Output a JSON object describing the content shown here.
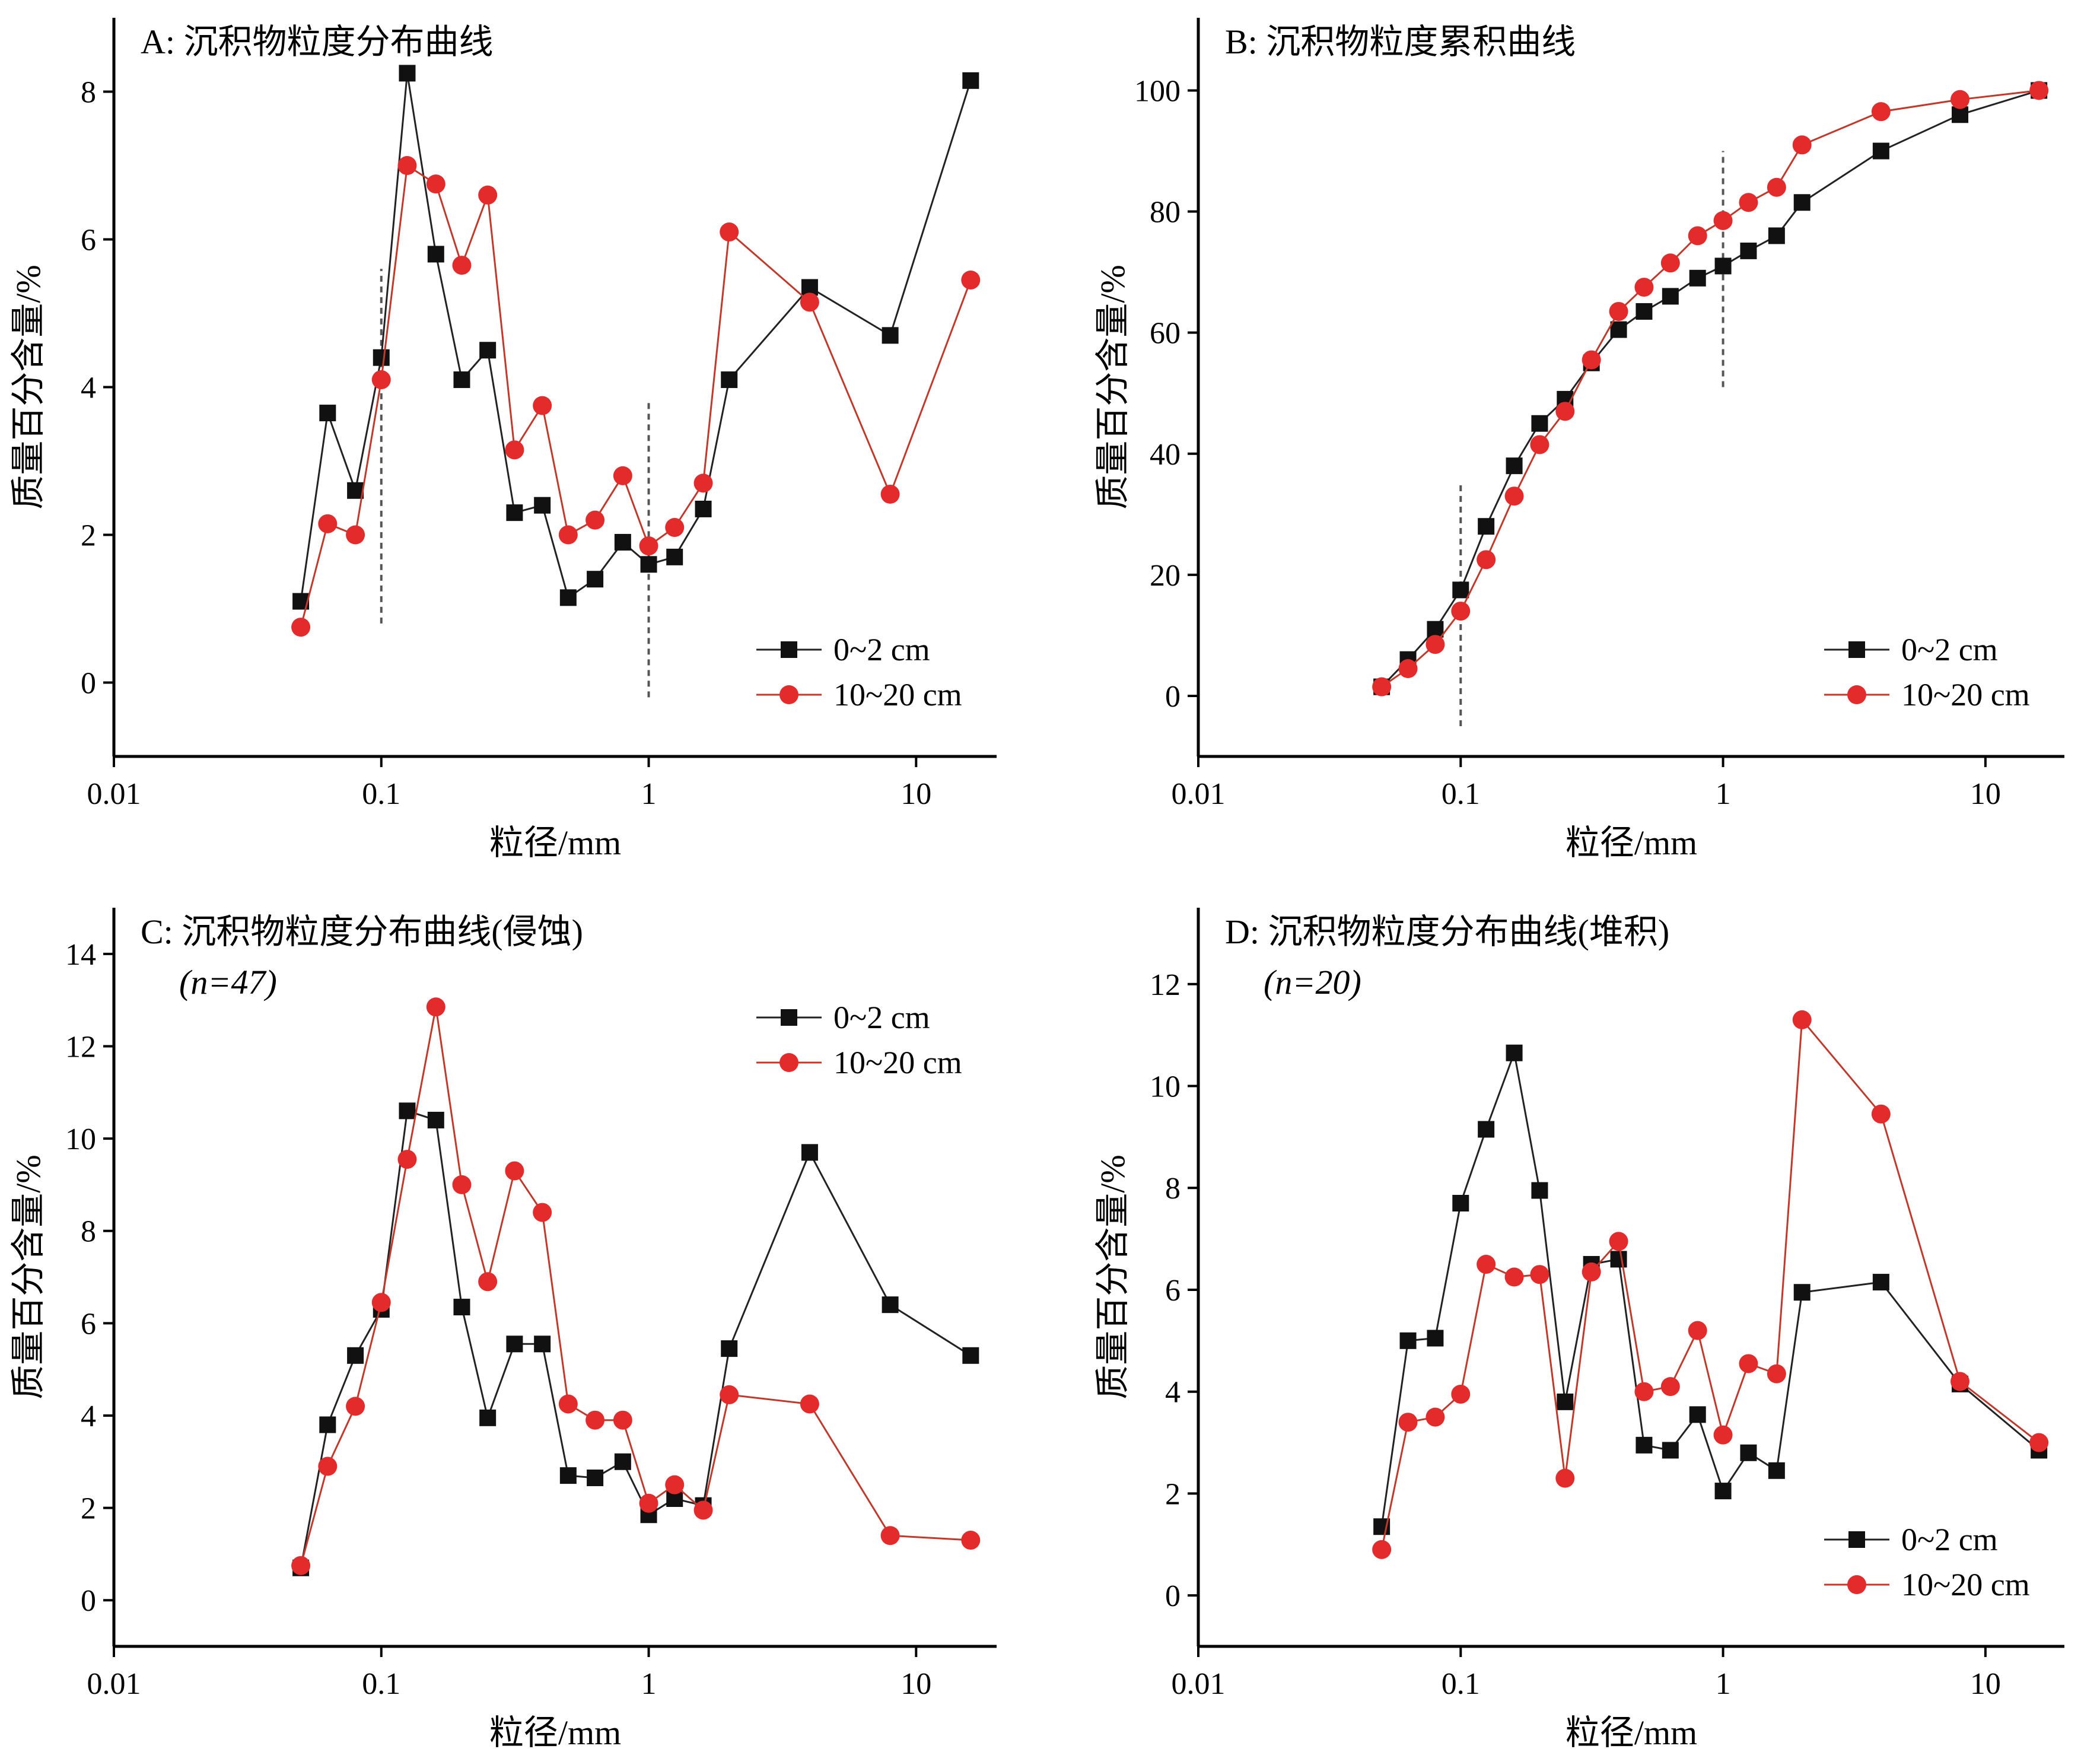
{
  "figure": {
    "xlabel": "粒径/mm",
    "ylabel": "质量百分含量/%",
    "x_ticks": [
      0.01,
      0.1,
      1,
      10
    ],
    "x_tick_labels": [
      "0.01",
      "0.1",
      "1",
      "10"
    ],
    "series_colors": [
      "#111111",
      "#e32b2b"
    ],
    "legend": [
      "0~2 cm",
      "10~20 cm"
    ]
  },
  "chart_data": [
    {
      "panel": "A",
      "type": "line",
      "title": "A: 沉积物粒度分布曲线",
      "subtitle": "",
      "xlabel": "粒径/mm",
      "ylabel": "质量百分含量/%",
      "x_scale": "log",
      "xlim": [
        0.01,
        20
      ],
      "ylim": [
        -1,
        9
      ],
      "yticks": [
        0,
        2,
        4,
        6,
        8
      ],
      "legend_position": "bottom-right",
      "reference_lines": [
        {
          "x": 0.1,
          "y_from": 0.8,
          "y_to": 5.6
        },
        {
          "x": 1,
          "y_from": -0.2,
          "y_to": 3.8
        }
      ],
      "x": [
        0.05,
        0.063,
        0.08,
        0.1,
        0.125,
        0.16,
        0.2,
        0.25,
        0.315,
        0.4,
        0.5,
        0.63,
        0.8,
        1,
        1.25,
        1.6,
        2,
        4,
        8,
        16
      ],
      "series": [
        {
          "name": "0~2 cm",
          "marker": "square",
          "values": [
            1.1,
            3.65,
            2.6,
            4.4,
            8.25,
            5.8,
            4.1,
            4.5,
            2.3,
            2.4,
            1.15,
            1.4,
            1.9,
            1.6,
            1.7,
            2.35,
            4.1,
            5.35,
            4.7,
            8.15
          ]
        },
        {
          "name": "10~20 cm",
          "marker": "circle",
          "values": [
            0.75,
            2.15,
            2.0,
            4.1,
            7.0,
            6.75,
            5.65,
            6.6,
            3.15,
            3.75,
            2.0,
            2.2,
            2.8,
            1.85,
            2.1,
            2.7,
            6.1,
            5.15,
            2.55,
            5.45
          ]
        }
      ]
    },
    {
      "panel": "B",
      "type": "line",
      "title": "B: 沉积物粒度累积曲线",
      "subtitle": "",
      "xlabel": "粒径/mm",
      "ylabel": "质量百分含量/%",
      "x_scale": "log",
      "xlim": [
        0.01,
        20
      ],
      "ylim": [
        -10,
        112
      ],
      "yticks": [
        0,
        20,
        40,
        60,
        80,
        100
      ],
      "legend_position": "bottom-right",
      "reference_lines": [
        {
          "x": 0.1,
          "y_from": -5,
          "y_to": 35
        },
        {
          "x": 1,
          "y_from": 51,
          "y_to": 90
        }
      ],
      "x": [
        0.05,
        0.063,
        0.08,
        0.1,
        0.125,
        0.16,
        0.2,
        0.25,
        0.315,
        0.4,
        0.5,
        0.63,
        0.8,
        1,
        1.25,
        1.6,
        2,
        4,
        8,
        16
      ],
      "series": [
        {
          "name": "0~2 cm",
          "marker": "square",
          "values": [
            1.5,
            6,
            11,
            17.5,
            28,
            38,
            45,
            49,
            55,
            60.5,
            63.5,
            66,
            69,
            71,
            73.5,
            76,
            81.5,
            90,
            96,
            100
          ]
        },
        {
          "name": "10~20 cm",
          "marker": "circle",
          "values": [
            1.5,
            4.5,
            8.5,
            14,
            22.5,
            33,
            41.5,
            47,
            55.5,
            63.5,
            67.5,
            71.5,
            76,
            78.5,
            81.5,
            84,
            91,
            96.5,
            98.5,
            100
          ]
        }
      ]
    },
    {
      "panel": "C",
      "type": "line",
      "title": "C: 沉积物粒度分布曲线(侵蚀)",
      "subtitle": "(n=47)",
      "xlabel": "粒径/mm",
      "ylabel": "质量百分含量/%",
      "x_scale": "log",
      "xlim": [
        0.01,
        20
      ],
      "ylim": [
        -1,
        15
      ],
      "yticks": [
        0,
        2,
        4,
        6,
        8,
        10,
        12,
        14
      ],
      "legend_position": "top-right",
      "reference_lines": [],
      "x": [
        0.05,
        0.063,
        0.08,
        0.1,
        0.125,
        0.16,
        0.2,
        0.25,
        0.315,
        0.4,
        0.5,
        0.63,
        0.8,
        1,
        1.25,
        1.6,
        2,
        4,
        8,
        16
      ],
      "series": [
        {
          "name": "0~2 cm",
          "marker": "square",
          "values": [
            0.7,
            3.8,
            5.3,
            6.3,
            10.6,
            10.4,
            6.35,
            3.95,
            5.55,
            5.55,
            2.7,
            2.65,
            3.0,
            1.85,
            2.2,
            2.05,
            5.45,
            9.7,
            6.4,
            5.3
          ]
        },
        {
          "name": "10~20 cm",
          "marker": "circle",
          "values": [
            0.75,
            2.9,
            4.2,
            6.45,
            9.55,
            12.85,
            9.0,
            6.9,
            9.3,
            8.4,
            4.25,
            3.9,
            3.9,
            2.1,
            2.5,
            1.95,
            4.45,
            4.25,
            1.4,
            1.3
          ]
        }
      ]
    },
    {
      "panel": "D",
      "type": "line",
      "title": "D: 沉积物粒度分布曲线(堆积)",
      "subtitle": "(n=20)",
      "xlabel": "粒径/mm",
      "ylabel": "质量百分含量/%",
      "x_scale": "log",
      "xlim": [
        0.01,
        20
      ],
      "ylim": [
        -1,
        13.5
      ],
      "yticks": [
        0,
        2,
        4,
        6,
        8,
        10,
        12
      ],
      "legend_position": "bottom-right",
      "reference_lines": [],
      "x": [
        0.05,
        0.063,
        0.08,
        0.1,
        0.125,
        0.16,
        0.2,
        0.25,
        0.315,
        0.4,
        0.5,
        0.63,
        0.8,
        1,
        1.25,
        1.6,
        2,
        4,
        8,
        16
      ],
      "series": [
        {
          "name": "0~2 cm",
          "marker": "square",
          "values": [
            1.35,
            5.0,
            5.05,
            7.7,
            9.15,
            10.65,
            7.95,
            3.8,
            6.5,
            6.6,
            2.95,
            2.85,
            3.55,
            2.05,
            2.8,
            2.45,
            5.95,
            6.15,
            4.15,
            2.85
          ]
        },
        {
          "name": "10~20 cm",
          "marker": "circle",
          "values": [
            0.9,
            3.4,
            3.5,
            3.95,
            6.5,
            6.25,
            6.3,
            2.3,
            6.35,
            6.95,
            4.0,
            4.1,
            5.2,
            3.15,
            4.55,
            4.35,
            11.3,
            9.45,
            4.2,
            3.0
          ]
        }
      ]
    }
  ]
}
